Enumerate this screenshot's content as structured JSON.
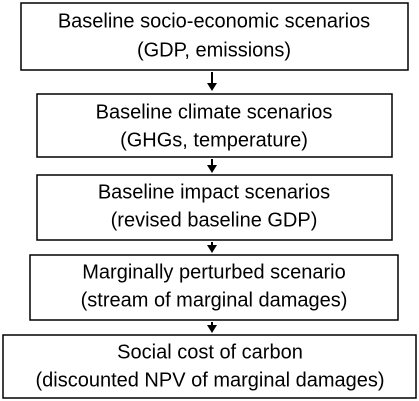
{
  "nodes": [
    {
      "lines": [
        "Baseline socio-economic scenarios",
        "(GDP, emissions)"
      ]
    },
    {
      "lines": [
        "Baseline climate scenarios",
        "(GHGs, temperature)"
      ]
    },
    {
      "lines": [
        "Baseline impact scenarios",
        "(revised baseline GDP)"
      ]
    },
    {
      "lines": [
        "Marginally perturbed scenario",
        "(stream of marginal damages)"
      ]
    },
    {
      "lines": [
        "Social cost of carbon",
        "(discounted NPV of marginal damages)"
      ]
    }
  ]
}
